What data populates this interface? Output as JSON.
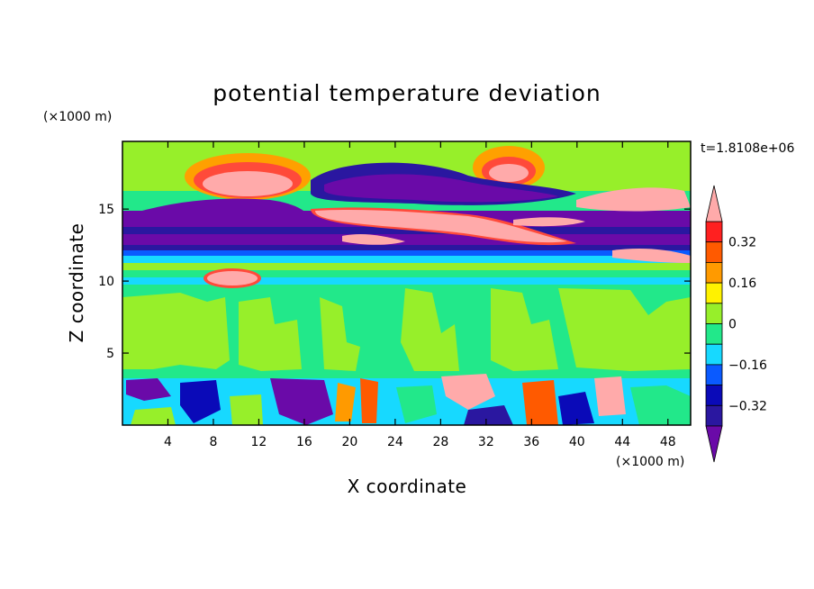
{
  "chart_data": {
    "type": "heatmap",
    "title": "potential temperature deviation",
    "xlabel": "X coordinate",
    "ylabel": "Z coordinate",
    "x_unit": "(×1000 m)",
    "y_unit": "(×1000 m)",
    "time_label": "t=1.8108e+06",
    "xlim": [
      0,
      50
    ],
    "ylim": [
      0,
      19.7
    ],
    "x_ticks": [
      "4",
      "8",
      "12",
      "16",
      "20",
      "24",
      "28",
      "32",
      "36",
      "40",
      "44",
      "48"
    ],
    "y_ticks": [
      "5",
      "10",
      "15"
    ],
    "colorbar": {
      "levels": [
        -0.4,
        -0.32,
        -0.24,
        -0.16,
        -0.08,
        0,
        0.08,
        0.16,
        0.24,
        0.32,
        0.4
      ],
      "tick_labels": [
        "0.32",
        "0.16",
        "0",
        "−0.16",
        "−0.32"
      ],
      "colors": [
        "#6a0aa8",
        "#2a17a0",
        "#0a0ab8",
        "#0a5aff",
        "#17d9ff",
        "#22e88a",
        "#97ef2a",
        "#fff200",
        "#ff9a00",
        "#ff5a00",
        "#ff2020",
        "#ffaaaa"
      ],
      "extend": "both"
    },
    "features": [
      {
        "z_range": [
          0,
          3.6
        ],
        "description_level": "turbulent mixed field, values ±0.4"
      },
      {
        "z_range": [
          3.6,
          10.5
        ],
        "level": 0
      },
      {
        "z_range": [
          12.2,
          15
        ],
        "level": -0.4
      },
      {
        "z_range": [
          15,
          19.7
        ],
        "level": 0
      }
    ]
  }
}
